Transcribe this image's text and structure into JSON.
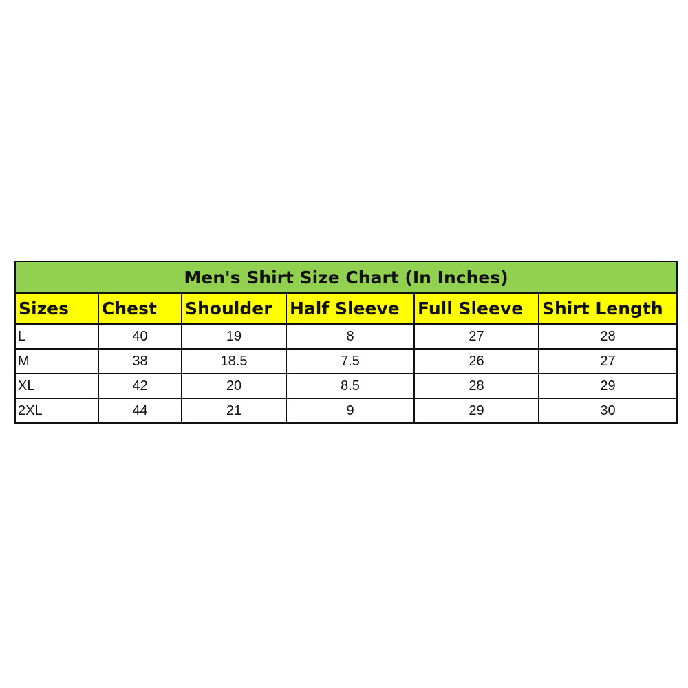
{
  "title": "Men's Shirt Size Chart (In Inches)",
  "colors": {
    "title_bg": "#92D050",
    "header_bg": "#FFFF00"
  },
  "headers": [
    "Sizes",
    "Chest",
    "Shoulder",
    "Half Sleeve",
    "Full Sleeve",
    "Shirt Length"
  ],
  "rows": [
    [
      "L",
      "40",
      "19",
      "8",
      "27",
      "28"
    ],
    [
      "M",
      "38",
      "18.5",
      "7.5",
      "26",
      "27"
    ],
    [
      "XL",
      "42",
      "20",
      "8.5",
      "28",
      "29"
    ],
    [
      "2XL",
      "44",
      "21",
      "9",
      "29",
      "30"
    ]
  ]
}
